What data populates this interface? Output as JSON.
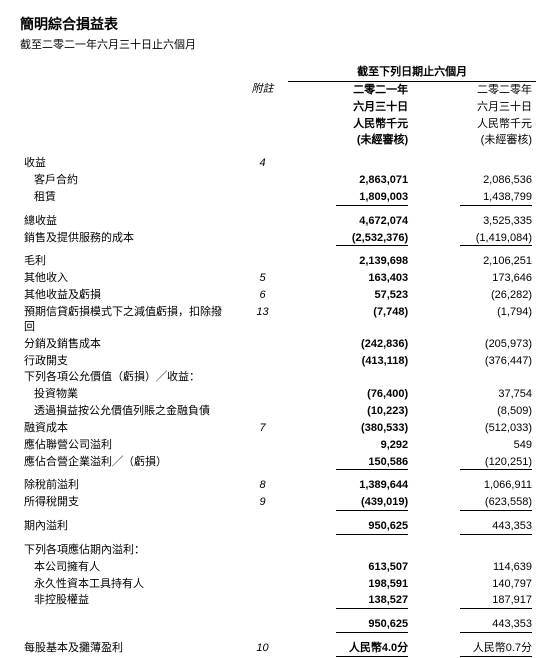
{
  "title": "簡明綜合損益表",
  "subtitle": "截至二零二一年六月三十日止六個月",
  "headers": {
    "note": "附註",
    "period_span": "截至下列日期止六個月",
    "cur1": "二零二一年",
    "cur2": "六月三十日",
    "cur3": "人民幣千元",
    "cur4": "(未經審核)",
    "prev1": "二零二零年",
    "prev2": "六月三十日",
    "prev3": "人民幣千元",
    "prev4": "(未經審核)"
  },
  "rows": {
    "revenue": {
      "label": "收益",
      "note": "4"
    },
    "contract": {
      "label": "客戶合約",
      "cur": "2,863,071",
      "prev": "2,086,536"
    },
    "rental": {
      "label": "租賃",
      "cur": "1,809,003",
      "prev": "1,438,799"
    },
    "total_rev": {
      "label": "總收益",
      "cur": "4,672,074",
      "prev": "3,525,335"
    },
    "cost": {
      "label": "銷售及提供服務的成本",
      "cur": "(2,532,376)",
      "prev": "(1,419,084)"
    },
    "gross": {
      "label": "毛利",
      "cur": "2,139,698",
      "prev": "2,106,251"
    },
    "other_inc": {
      "label": "其他收入",
      "note": "5",
      "cur": "163,403",
      "prev": "173,646"
    },
    "other_gl": {
      "label": "其他收益及虧損",
      "note": "6",
      "cur": "57,523",
      "prev": "(26,282)"
    },
    "ecl": {
      "label": "預期信貸虧損模式下之減值虧損，扣除撥回",
      "note": "13",
      "cur": "(7,748)",
      "prev": "(1,794)"
    },
    "dist": {
      "label": "分銷及銷售成本",
      "cur": "(242,836)",
      "prev": "(205,973)"
    },
    "admin": {
      "label": "行政開支",
      "cur": "(413,118)",
      "prev": "(376,447)"
    },
    "fv_head": {
      "label": "下列各項公允價值（虧損）╱收益："
    },
    "fv_prop": {
      "label": "投資物業",
      "cur": "(76,400)",
      "prev": "37,754"
    },
    "fv_fin": {
      "label": "透過損益按公允價值列賬之金融負債",
      "cur": "(10,223)",
      "prev": "(8,509)"
    },
    "fin_cost": {
      "label": "融資成本",
      "note": "7",
      "cur": "(380,533)",
      "prev": "(512,033)"
    },
    "assoc": {
      "label": "應佔聯營公司溢利",
      "cur": "9,292",
      "prev": "549"
    },
    "jv": {
      "label": "應佔合營企業溢利╱（虧損）",
      "cur": "150,586",
      "prev": "(120,251)"
    },
    "pbt": {
      "label": "除稅前溢利",
      "note": "8",
      "cur": "1,389,644",
      "prev": "1,066,911"
    },
    "tax": {
      "label": "所得稅開支",
      "note": "9",
      "cur": "(439,019)",
      "prev": "(623,558)"
    },
    "period": {
      "label": "期內溢利",
      "cur": "950,625",
      "prev": "443,353"
    },
    "attr_head": {
      "label": "下列各項應佔期內溢利："
    },
    "owners": {
      "label": "本公司擁有人",
      "cur": "613,507",
      "prev": "114,639"
    },
    "perp": {
      "label": "永久性資本工具持有人",
      "cur": "198,591",
      "prev": "140,797"
    },
    "nci": {
      "label": "非控股權益",
      "cur": "138,527",
      "prev": "187,917"
    },
    "attr_tot": {
      "cur": "950,625",
      "prev": "443,353"
    },
    "eps": {
      "label": "每股基本及攤薄盈利",
      "note": "10",
      "cur": "人民幣4.0分",
      "prev": "人民幣0.7分"
    }
  }
}
